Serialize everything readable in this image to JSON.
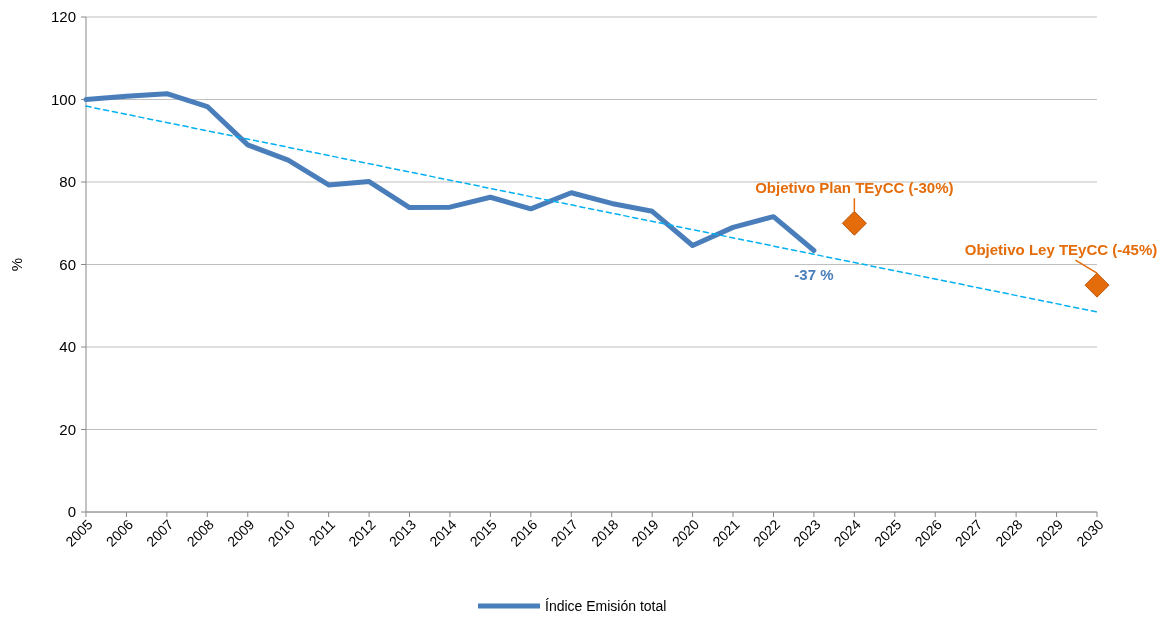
{
  "chart_data": {
    "type": "line",
    "ylabel": "%",
    "x": [
      2005,
      2006,
      2007,
      2008,
      2009,
      2010,
      2011,
      2012,
      2013,
      2014,
      2015,
      2016,
      2017,
      2018,
      2019,
      2020,
      2021,
      2022,
      2023
    ],
    "series": [
      {
        "name": "Índice Emisión total",
        "color": "#4a7ebb",
        "marker": "none",
        "line_style": "solid",
        "values": [
          100,
          100.8,
          101.4,
          98.3,
          89,
          85.3,
          79.3,
          80.1,
          73.8,
          73.9,
          76.3,
          73.5,
          77.4,
          74.8,
          72.9,
          64.6,
          69,
          71.6,
          63.4
        ]
      },
      {
        "type": "line",
        "color": "#00b0f0",
        "marker": "none",
        "line_style": "dashed",
        "x": [
          2005,
          2030
        ],
        "values": [
          98.4,
          48.5
        ]
      },
      {
        "type": "scatter",
        "color": "#e46c0a",
        "marker": "diamond",
        "x": [
          2024,
          2030
        ],
        "values": [
          70,
          55
        ]
      }
    ],
    "annotations": [
      {
        "text": "Objetivo Plan TEyCC (-30%)",
        "x": 2024,
        "y": 70
      },
      {
        "text": "Objetivo Ley TEyCC (-45%)",
        "x": 2030,
        "y": 55
      },
      {
        "text": "-37 %",
        "x": 2023,
        "y": 63.4
      }
    ],
    "xlim": [
      2005,
      2030
    ],
    "xticks": [
      2005,
      2006,
      2007,
      2008,
      2009,
      2010,
      2011,
      2012,
      2013,
      2014,
      2015,
      2016,
      2017,
      2018,
      2019,
      2020,
      2021,
      2022,
      2023,
      2024,
      2025,
      2026,
      2027,
      2028,
      2029,
      2030
    ],
    "ylim": [
      0,
      120
    ],
    "yticks": [
      0,
      20,
      40,
      60,
      80,
      100,
      120
    ],
    "grid": "y",
    "legend": "bottom"
  }
}
